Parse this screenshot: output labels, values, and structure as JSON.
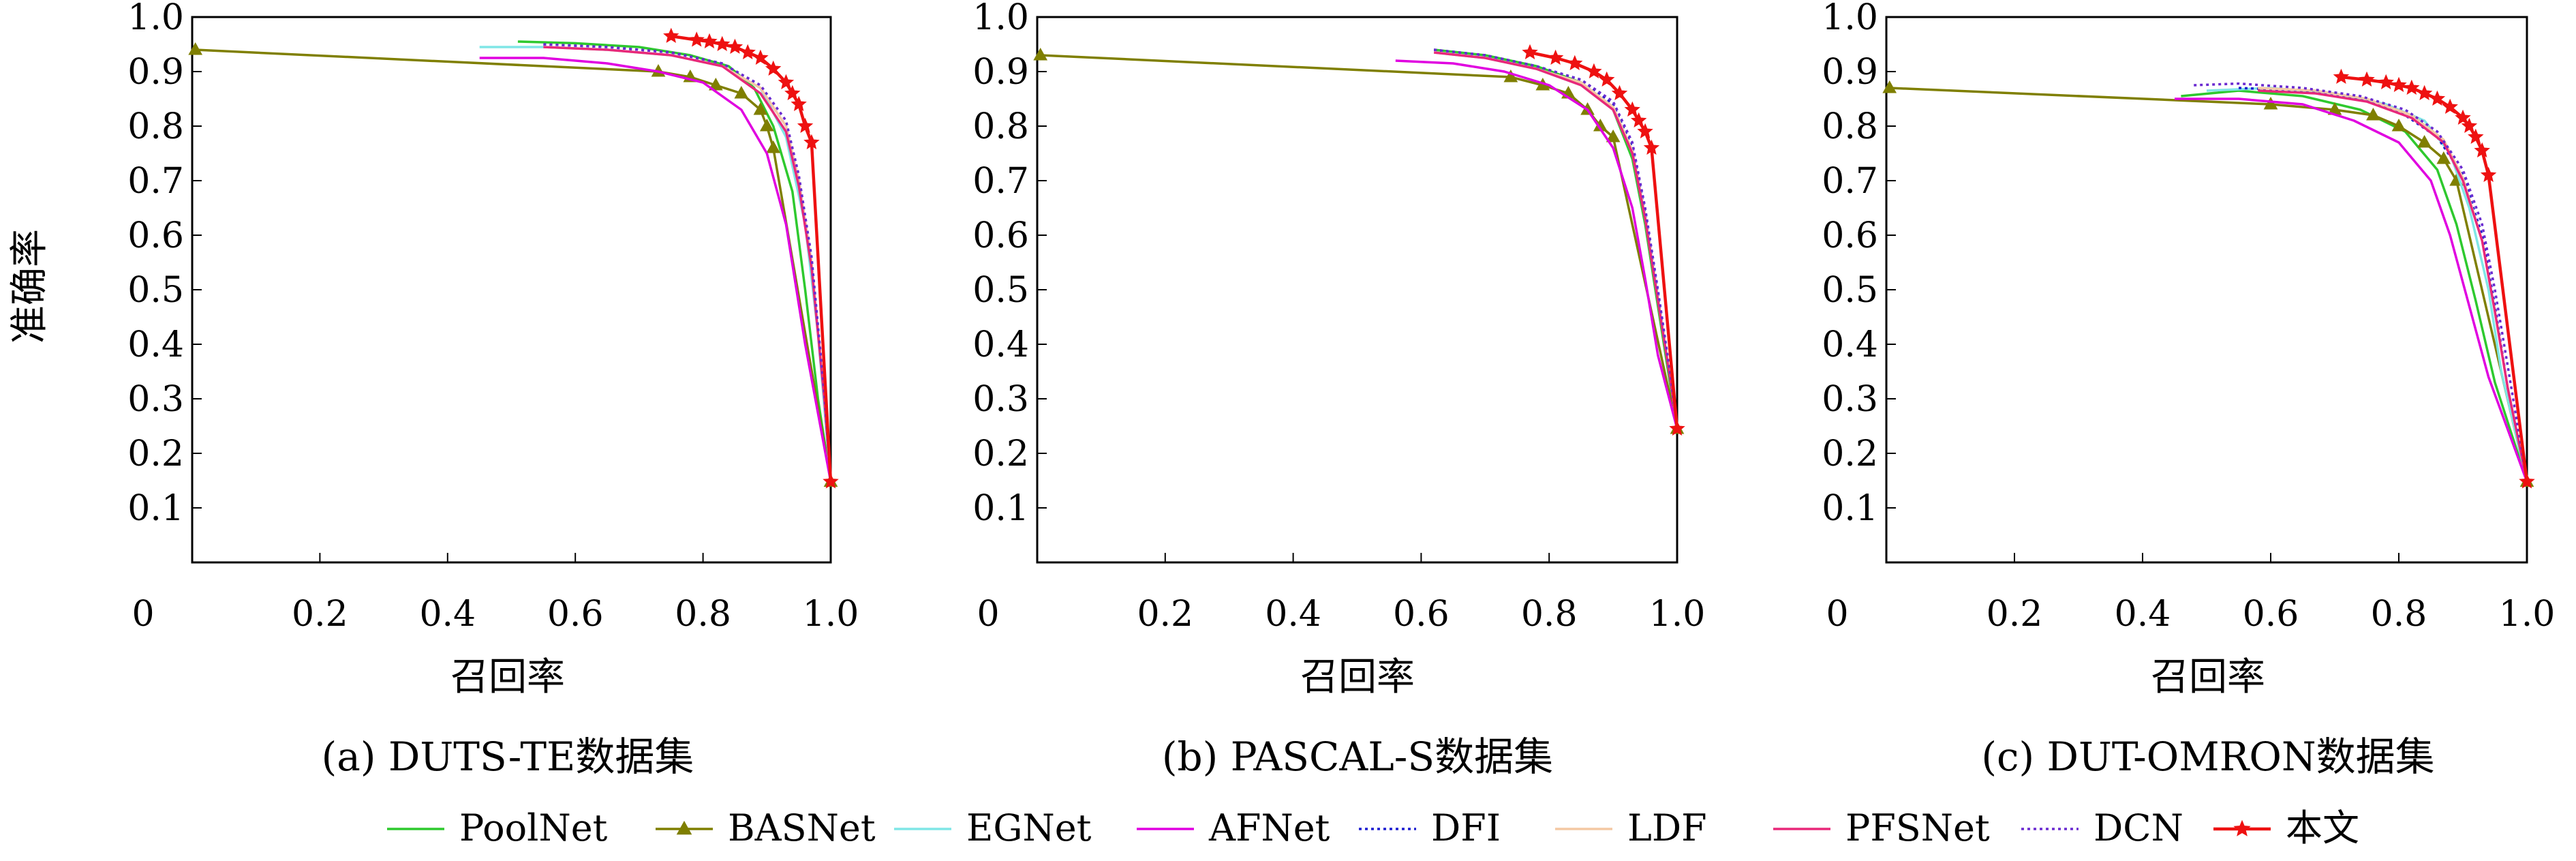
{
  "chart_data": [
    {
      "type": "line",
      "caption": "(a) DUTS-TE数据集",
      "xlabel": "召回率",
      "ylabel": "准确率",
      "xlim": [
        0,
        1.0
      ],
      "ylim": [
        0,
        1.0
      ],
      "xticks": [
        "0",
        "0.2",
        "0.4",
        "0.6",
        "0.8",
        "1.0"
      ],
      "yticks": [
        "0.1",
        "0.2",
        "0.3",
        "0.4",
        "0.5",
        "0.6",
        "0.7",
        "0.8",
        "0.9",
        "1.0"
      ],
      "series": [
        {
          "name": "PoolNet",
          "x": [
            0.51,
            0.6,
            0.7,
            0.78,
            0.84,
            0.88,
            0.91,
            0.94,
            0.96,
            0.98,
            1.0
          ],
          "y": [
            0.955,
            0.952,
            0.945,
            0.93,
            0.91,
            0.87,
            0.8,
            0.68,
            0.5,
            0.3,
            0.148
          ]
        },
        {
          "name": "BASNet",
          "x": [
            0.005,
            0.73,
            0.78,
            0.82,
            0.86,
            0.89,
            0.9,
            0.91,
            1.0
          ],
          "y": [
            0.94,
            0.9,
            0.89,
            0.875,
            0.86,
            0.83,
            0.8,
            0.76,
            0.148
          ]
        },
        {
          "name": "EGNet",
          "x": [
            0.45,
            0.55,
            0.65,
            0.75,
            0.83,
            0.89,
            0.93,
            0.96,
            0.98,
            1.0
          ],
          "y": [
            0.945,
            0.945,
            0.94,
            0.93,
            0.91,
            0.87,
            0.78,
            0.62,
            0.42,
            0.148
          ]
        },
        {
          "name": "AFNet",
          "x": [
            0.45,
            0.55,
            0.65,
            0.73,
            0.8,
            0.86,
            0.9,
            0.93,
            0.96,
            1.0
          ],
          "y": [
            0.925,
            0.925,
            0.915,
            0.9,
            0.88,
            0.83,
            0.75,
            0.62,
            0.4,
            0.148
          ]
        },
        {
          "name": "DFI",
          "x": [
            0.55,
            0.65,
            0.75,
            0.83,
            0.89,
            0.93,
            0.95,
            0.97,
            0.99,
            1.0
          ],
          "y": [
            0.95,
            0.945,
            0.935,
            0.915,
            0.87,
            0.8,
            0.7,
            0.55,
            0.3,
            0.148
          ]
        },
        {
          "name": "LDF",
          "x": [
            0.55,
            0.65,
            0.75,
            0.83,
            0.89,
            0.93,
            0.95,
            0.97,
            0.99,
            1.0
          ],
          "y": [
            0.945,
            0.94,
            0.93,
            0.91,
            0.87,
            0.8,
            0.7,
            0.55,
            0.3,
            0.148
          ]
        },
        {
          "name": "PFSNet",
          "x": [
            0.55,
            0.65,
            0.75,
            0.83,
            0.89,
            0.93,
            0.95,
            0.97,
            0.99,
            1.0
          ],
          "y": [
            0.945,
            0.94,
            0.93,
            0.91,
            0.86,
            0.79,
            0.69,
            0.54,
            0.3,
            0.148
          ]
        },
        {
          "name": "DCN",
          "x": [
            0.55,
            0.65,
            0.75,
            0.83,
            0.89,
            0.93,
            0.95,
            0.97,
            0.99,
            1.0
          ],
          "y": [
            0.95,
            0.945,
            0.935,
            0.915,
            0.875,
            0.81,
            0.71,
            0.56,
            0.31,
            0.148
          ]
        },
        {
          "name": "本文",
          "x": [
            0.75,
            0.79,
            0.81,
            0.83,
            0.85,
            0.87,
            0.89,
            0.91,
            0.93,
            0.94,
            0.95,
            0.96,
            0.97,
            1.0
          ],
          "y": [
            0.965,
            0.958,
            0.955,
            0.95,
            0.945,
            0.935,
            0.925,
            0.905,
            0.88,
            0.86,
            0.84,
            0.8,
            0.77,
            0.148
          ]
        }
      ]
    },
    {
      "type": "line",
      "caption": "(b) PASCAL-S数据集",
      "xlabel": "召回率",
      "xlim": [
        0,
        1.0
      ],
      "ylim": [
        0,
        1.0
      ],
      "xticks": [
        "0",
        "0.2",
        "0.4",
        "0.6",
        "0.8",
        "1.0"
      ],
      "yticks": [
        "0.1",
        "0.2",
        "0.3",
        "0.4",
        "0.5",
        "0.6",
        "0.7",
        "0.8",
        "0.9",
        "1.0"
      ],
      "series": [
        {
          "name": "PoolNet",
          "x": [
            0.62,
            0.7,
            0.78,
            0.85,
            0.9,
            0.93,
            0.95,
            0.97,
            0.99,
            1.0
          ],
          "y": [
            0.94,
            0.93,
            0.91,
            0.88,
            0.83,
            0.74,
            0.62,
            0.47,
            0.32,
            0.245
          ]
        },
        {
          "name": "BASNet",
          "x": [
            0.005,
            0.74,
            0.79,
            0.83,
            0.86,
            0.88,
            0.9,
            1.0
          ],
          "y": [
            0.93,
            0.89,
            0.875,
            0.86,
            0.83,
            0.8,
            0.78,
            0.245
          ]
        },
        {
          "name": "EGNet",
          "x": [
            0.62,
            0.7,
            0.78,
            0.85,
            0.9,
            0.93,
            0.95,
            0.97,
            0.99,
            1.0
          ],
          "y": [
            0.935,
            0.925,
            0.905,
            0.875,
            0.83,
            0.75,
            0.63,
            0.48,
            0.33,
            0.245
          ]
        },
        {
          "name": "AFNet",
          "x": [
            0.56,
            0.65,
            0.73,
            0.8,
            0.86,
            0.9,
            0.93,
            0.95,
            0.97,
            1.0
          ],
          "y": [
            0.92,
            0.915,
            0.9,
            0.875,
            0.83,
            0.76,
            0.65,
            0.52,
            0.38,
            0.245
          ]
        },
        {
          "name": "DFI",
          "x": [
            0.62,
            0.7,
            0.78,
            0.85,
            0.9,
            0.93,
            0.95,
            0.97,
            0.99,
            1.0
          ],
          "y": [
            0.94,
            0.93,
            0.91,
            0.885,
            0.84,
            0.76,
            0.64,
            0.49,
            0.33,
            0.245
          ]
        },
        {
          "name": "LDF",
          "x": [
            0.62,
            0.7,
            0.78,
            0.85,
            0.9,
            0.93,
            0.95,
            0.97,
            0.99,
            1.0
          ],
          "y": [
            0.935,
            0.925,
            0.905,
            0.88,
            0.835,
            0.755,
            0.635,
            0.485,
            0.33,
            0.245
          ]
        },
        {
          "name": "PFSNet",
          "x": [
            0.62,
            0.7,
            0.78,
            0.85,
            0.9,
            0.93,
            0.95,
            0.97,
            0.99,
            1.0
          ],
          "y": [
            0.935,
            0.925,
            0.905,
            0.875,
            0.83,
            0.75,
            0.63,
            0.48,
            0.33,
            0.245
          ]
        },
        {
          "name": "DCN",
          "x": [
            0.62,
            0.7,
            0.78,
            0.85,
            0.9,
            0.93,
            0.95,
            0.97,
            0.99,
            1.0
          ],
          "y": [
            0.94,
            0.93,
            0.91,
            0.885,
            0.845,
            0.77,
            0.65,
            0.5,
            0.34,
            0.245
          ]
        },
        {
          "name": "本文",
          "x": [
            0.77,
            0.81,
            0.84,
            0.87,
            0.89,
            0.91,
            0.93,
            0.94,
            0.95,
            0.96,
            1.0
          ],
          "y": [
            0.935,
            0.925,
            0.915,
            0.9,
            0.885,
            0.86,
            0.83,
            0.81,
            0.79,
            0.76,
            0.245
          ]
        }
      ]
    },
    {
      "type": "line",
      "caption": "(c) DUT-OMRON数据集",
      "xlabel": "召回率",
      "xlim": [
        0,
        1.0
      ],
      "ylim": [
        0,
        1.0
      ],
      "xticks": [
        "0",
        "0.2",
        "0.4",
        "0.6",
        "0.8",
        "1.0"
      ],
      "yticks": [
        "0.1",
        "0.2",
        "0.3",
        "0.4",
        "0.5",
        "0.6",
        "0.7",
        "0.8",
        "0.9",
        "1.0"
      ],
      "series": [
        {
          "name": "PoolNet",
          "x": [
            0.46,
            0.55,
            0.65,
            0.74,
            0.81,
            0.86,
            0.89,
            0.92,
            0.95,
            1.0
          ],
          "y": [
            0.855,
            0.865,
            0.855,
            0.83,
            0.79,
            0.72,
            0.62,
            0.48,
            0.33,
            0.148
          ]
        },
        {
          "name": "BASNet",
          "x": [
            0.005,
            0.6,
            0.7,
            0.76,
            0.8,
            0.84,
            0.87,
            0.89,
            1.0
          ],
          "y": [
            0.87,
            0.84,
            0.83,
            0.82,
            0.8,
            0.77,
            0.74,
            0.7,
            0.148
          ]
        },
        {
          "name": "EGNet",
          "x": [
            0.5,
            0.6,
            0.7,
            0.78,
            0.84,
            0.88,
            0.91,
            0.94,
            0.96,
            1.0
          ],
          "y": [
            0.865,
            0.87,
            0.86,
            0.84,
            0.81,
            0.75,
            0.65,
            0.5,
            0.35,
            0.148
          ]
        },
        {
          "name": "AFNet",
          "x": [
            0.45,
            0.55,
            0.65,
            0.73,
            0.8,
            0.85,
            0.88,
            0.91,
            0.94,
            1.0
          ],
          "y": [
            0.85,
            0.85,
            0.84,
            0.81,
            0.77,
            0.7,
            0.6,
            0.47,
            0.34,
            0.148
          ]
        },
        {
          "name": "DFI",
          "x": [
            0.55,
            0.65,
            0.74,
            0.81,
            0.86,
            0.9,
            0.93,
            0.95,
            0.97,
            1.0
          ],
          "y": [
            0.87,
            0.865,
            0.85,
            0.82,
            0.78,
            0.71,
            0.6,
            0.47,
            0.32,
            0.148
          ]
        },
        {
          "name": "LDF",
          "x": [
            0.58,
            0.67,
            0.75,
            0.82,
            0.87,
            0.9,
            0.93,
            0.95,
            0.97,
            1.0
          ],
          "y": [
            0.87,
            0.865,
            0.85,
            0.82,
            0.775,
            0.705,
            0.59,
            0.46,
            0.32,
            0.148
          ]
        },
        {
          "name": "PFSNet",
          "x": [
            0.58,
            0.67,
            0.75,
            0.82,
            0.87,
            0.9,
            0.93,
            0.95,
            0.97,
            1.0
          ],
          "y": [
            0.865,
            0.86,
            0.845,
            0.815,
            0.77,
            0.7,
            0.59,
            0.46,
            0.32,
            0.148
          ]
        },
        {
          "name": "DCN",
          "x": [
            0.48,
            0.55,
            0.65,
            0.74,
            0.81,
            0.86,
            0.9,
            0.93,
            0.95,
            0.97,
            1.0
          ],
          "y": [
            0.875,
            0.878,
            0.87,
            0.855,
            0.83,
            0.79,
            0.72,
            0.62,
            0.5,
            0.36,
            0.148
          ]
        },
        {
          "name": "本文",
          "x": [
            0.71,
            0.75,
            0.78,
            0.8,
            0.82,
            0.84,
            0.86,
            0.88,
            0.9,
            0.91,
            0.92,
            0.93,
            0.94,
            1.0
          ],
          "y": [
            0.89,
            0.885,
            0.88,
            0.875,
            0.87,
            0.86,
            0.85,
            0.835,
            0.815,
            0.8,
            0.78,
            0.755,
            0.71,
            0.148
          ]
        }
      ]
    }
  ],
  "legend": [
    {
      "name": "PoolNet",
      "color": "#2ec92e",
      "dash": "solid",
      "marker": "none"
    },
    {
      "name": "BASNet",
      "color": "#7f7f00",
      "dash": "solid",
      "marker": "triangle"
    },
    {
      "name": "EGNet",
      "color": "#80e6e6",
      "dash": "solid",
      "marker": "none"
    },
    {
      "name": "AFNet",
      "color": "#e000e0",
      "dash": "solid",
      "marker": "none"
    },
    {
      "name": "DFI",
      "color": "#1c1cd0",
      "dash": "dotted",
      "marker": "none"
    },
    {
      "name": "LDF",
      "color": "#f4c8a4",
      "dash": "solid",
      "marker": "none"
    },
    {
      "name": "PFSNet",
      "color": "#e8287a",
      "dash": "solid",
      "marker": "none"
    },
    {
      "name": "DCN",
      "color": "#6a2ad0",
      "dash": "dotted",
      "marker": "none"
    },
    {
      "name": "本文",
      "color": "#ee1111",
      "dash": "solid",
      "marker": "star"
    }
  ]
}
